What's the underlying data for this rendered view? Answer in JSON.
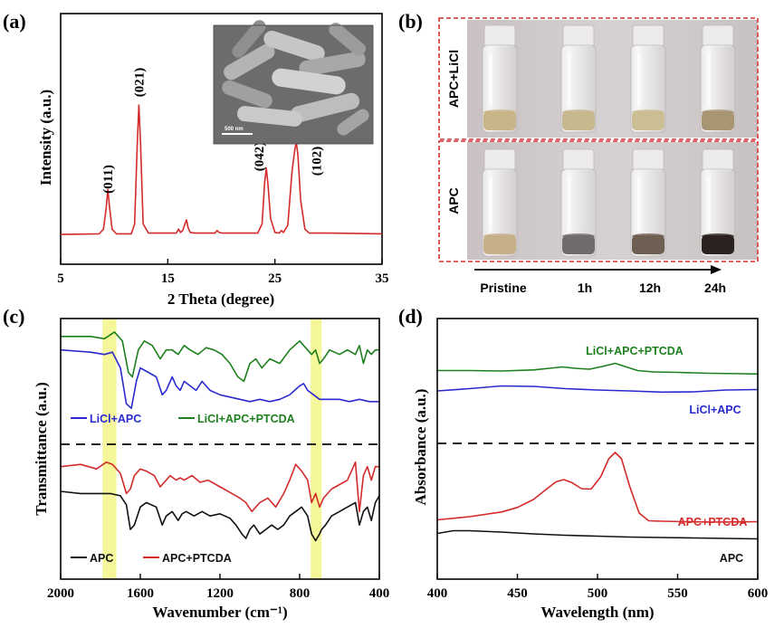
{
  "panels": {
    "a": "(a)",
    "b": "(b)",
    "c": "(c)",
    "d": "(d)"
  },
  "colors": {
    "red": "#d42a2a",
    "blue": "#2a2ad0",
    "green": "#1d7f1d",
    "black": "#111111",
    "highlight": "#f4f48a",
    "dashed_box": "#d83030"
  },
  "photo_panel": {
    "row_labels": [
      "APC+LiCl",
      "APC"
    ],
    "time_labels": [
      "Pristine",
      "1h",
      "12h",
      "24h"
    ],
    "vial_liquid_colors": {
      "apc_licl": [
        "#c8b58a",
        "#c7b88e",
        "#cbbd94",
        "#a89572"
      ],
      "apc": [
        "#c6b08a",
        "#6f6b6e",
        "#6f5e52",
        "#2a2220"
      ]
    }
  },
  "sem_inset": {
    "scale_text": "500 nm"
  },
  "chart_data": [
    {
      "id": "a",
      "type": "line",
      "title": "",
      "xlabel": "2 Theta (degree)",
      "ylabel": "Intensity (a.u.)",
      "xlim": [
        5,
        35
      ],
      "xticks": [
        5,
        15,
        25,
        35
      ],
      "xtick_labels": [
        "5",
        "15",
        "25",
        "35"
      ],
      "ylim": [
        0,
        110
      ],
      "annotations": [
        {
          "text": "(011)",
          "x": 9.4
        },
        {
          "text": "(021)",
          "x": 12.3
        },
        {
          "text": "(042)",
          "x": 24.2
        },
        {
          "text": "(102)",
          "x": 27.0
        }
      ],
      "series": [
        {
          "name": "XRD",
          "color": "#d42a2a",
          "x": [
            5,
            8.6,
            9.0,
            9.25,
            9.4,
            9.55,
            9.8,
            10.2,
            11.6,
            11.9,
            12.15,
            12.3,
            12.45,
            12.7,
            13.2,
            15.8,
            16.0,
            16.2,
            16.4,
            16.6,
            16.75,
            16.9,
            17.1,
            17.5,
            19.4,
            19.6,
            19.8,
            20.1,
            21.5,
            23.4,
            23.8,
            24.05,
            24.2,
            24.35,
            24.6,
            25.0,
            25.4,
            25.6,
            25.8,
            26.2,
            26.6,
            26.85,
            27.0,
            27.15,
            27.4,
            27.8,
            28.2,
            30.0,
            35
          ],
          "y": [
            2,
            2.5,
            6,
            22,
            36,
            24,
            6,
            2.5,
            2.5,
            10,
            70,
            100,
            72,
            10,
            3,
            3,
            6,
            3.5,
            5,
            10,
            13,
            7,
            3.5,
            3,
            3,
            5,
            3.5,
            3,
            3,
            3,
            10,
            42,
            52,
            40,
            14,
            3.5,
            3,
            5,
            3.5,
            9,
            50,
            66,
            72,
            62,
            28,
            6,
            3,
            3,
            2.5
          ]
        }
      ]
    },
    {
      "id": "c",
      "type": "line",
      "title": "",
      "xlabel": "Wavenumber (cm⁻¹)",
      "ylabel": "Transmittance (a.u.)",
      "xlim": [
        2000,
        400
      ],
      "xticks": [
        2000,
        1600,
        1200,
        800,
        400
      ],
      "xtick_labels": [
        "2000",
        "1600",
        "1200",
        "800",
        "400"
      ],
      "ylim": [
        0,
        100
      ],
      "highlight_bands": [
        [
          1790,
          1720
        ],
        [
          745,
          690
        ]
      ],
      "divider_y": 50,
      "legend": [
        {
          "label": "LiCl+APC",
          "color": "#2a2ad0"
        },
        {
          "label": "LiCl+APC+PTCDA",
          "color": "#1d7f1d"
        },
        {
          "label": "APC",
          "color": "#111111"
        },
        {
          "label": "APC+PTCDA",
          "color": "#d42a2a"
        }
      ],
      "series": [
        {
          "name": "LiCl+APC+PTCDA",
          "color": "#1d7f1d",
          "x": [
            2000,
            1850,
            1780,
            1730,
            1690,
            1660,
            1640,
            1610,
            1580,
            1540,
            1500,
            1470,
            1440,
            1410,
            1380,
            1350,
            1310,
            1270,
            1230,
            1190,
            1150,
            1110,
            1080,
            1050,
            1020,
            990,
            950,
            900,
            850,
            800,
            780,
            740,
            720,
            700,
            680,
            650,
            600,
            560,
            520,
            500,
            480,
            460,
            440,
            420,
            400
          ],
          "y": [
            92,
            92,
            91,
            94,
            90,
            76,
            74,
            86,
            90,
            88,
            82,
            86,
            86,
            84,
            88,
            86,
            84,
            87,
            86,
            84,
            80,
            74,
            72,
            80,
            82,
            78,
            82,
            80,
            86,
            90,
            88,
            84,
            86,
            80,
            82,
            86,
            84,
            86,
            84,
            88,
            80,
            86,
            84,
            86,
            86
          ]
        },
        {
          "name": "LiCl+APC",
          "color": "#2a2ad0",
          "x": [
            2000,
            1850,
            1780,
            1740,
            1700,
            1670,
            1645,
            1620,
            1600,
            1560,
            1520,
            1490,
            1470,
            1440,
            1420,
            1400,
            1380,
            1350,
            1320,
            1290,
            1250,
            1200,
            1150,
            1100,
            1050,
            1000,
            950,
            900,
            850,
            800,
            780,
            760,
            730,
            700,
            680,
            650,
            600,
            550,
            500,
            450,
            400
          ],
          "y": [
            86,
            85,
            84,
            85,
            78,
            62,
            60,
            72,
            78,
            76,
            74,
            66,
            68,
            74,
            70,
            68,
            72,
            70,
            68,
            72,
            68,
            66,
            65,
            64,
            63,
            64,
            63,
            64,
            66,
            70,
            71,
            68,
            66,
            64,
            64,
            64,
            64,
            63,
            64,
            63,
            63
          ]
        },
        {
          "name": "APC+PTCDA",
          "color": "#d42a2a",
          "x": [
            2000,
            1900,
            1820,
            1770,
            1740,
            1700,
            1670,
            1650,
            1630,
            1600,
            1570,
            1530,
            1500,
            1470,
            1450,
            1420,
            1400,
            1380,
            1340,
            1300,
            1260,
            1220,
            1180,
            1140,
            1100,
            1070,
            1040,
            1000,
            960,
            920,
            880,
            850,
            820,
            790,
            760,
            740,
            720,
            700,
            680,
            640,
            600,
            560,
            520,
            500,
            480,
            460,
            440,
            420,
            400
          ],
          "y": [
            34,
            35,
            33,
            36,
            35,
            31,
            22,
            24,
            30,
            33,
            32,
            30,
            25,
            28,
            30,
            28,
            29,
            28,
            30,
            27,
            28,
            26,
            24,
            22,
            20,
            18,
            14,
            18,
            20,
            16,
            22,
            28,
            35,
            32,
            28,
            18,
            22,
            16,
            20,
            24,
            26,
            28,
            36,
            14,
            30,
            34,
            28,
            34,
            34
          ]
        },
        {
          "name": "APC",
          "color": "#111111",
          "x": [
            2000,
            1900,
            1800,
            1750,
            1700,
            1670,
            1650,
            1630,
            1600,
            1570,
            1520,
            1490,
            1470,
            1440,
            1410,
            1390,
            1370,
            1330,
            1290,
            1250,
            1200,
            1150,
            1120,
            1090,
            1070,
            1050,
            1030,
            1000,
            970,
            940,
            910,
            880,
            850,
            820,
            790,
            760,
            740,
            720,
            700,
            690,
            670,
            640,
            600,
            560,
            520,
            500,
            480,
            460,
            440,
            420,
            400
          ],
          "y": [
            23,
            22,
            22,
            22,
            21,
            17,
            6,
            8,
            16,
            18,
            16,
            8,
            12,
            14,
            10,
            13,
            14,
            12,
            14,
            12,
            13,
            11,
            8,
            4,
            2,
            6,
            8,
            4,
            6,
            8,
            6,
            8,
            12,
            14,
            16,
            12,
            4,
            1,
            4,
            6,
            8,
            12,
            14,
            16,
            18,
            8,
            14,
            16,
            10,
            18,
            21
          ]
        }
      ]
    },
    {
      "id": "d",
      "type": "line",
      "title": "",
      "xlabel": "Wavelength (nm)",
      "ylabel": "Absorbance (a.u.)",
      "xlim": [
        400,
        600
      ],
      "xticks": [
        400,
        450,
        500,
        550,
        600
      ],
      "xtick_labels": [
        "400",
        "450",
        "500",
        "550",
        "600"
      ],
      "ylim": [
        0,
        100
      ],
      "divider_y": 49,
      "labels": [
        {
          "text": "LiCl+APC+PTCDA",
          "color": "#1d7f1d"
        },
        {
          "text": "LiCl+APC",
          "color": "#2a2ad0"
        },
        {
          "text": "APC+PTCDA",
          "color": "#d42a2a"
        },
        {
          "text": "APC",
          "color": "#111111"
        }
      ],
      "series": [
        {
          "name": "LiCl+APC+PTCDA",
          "color": "#1d7f1d",
          "x": [
            400,
            420,
            440,
            460,
            470,
            478,
            486,
            495,
            503,
            511,
            518,
            525,
            535,
            550,
            570,
            590,
            600
          ],
          "y": [
            77,
            77,
            76.8,
            77.3,
            78,
            78.6,
            78,
            77.6,
            78.8,
            80.2,
            78.6,
            77,
            76.4,
            76.2,
            75.8,
            75.6,
            75.5
          ]
        },
        {
          "name": "LiCl+APC",
          "color": "#2a2ad0",
          "x": [
            400,
            420,
            440,
            460,
            480,
            500,
            520,
            540,
            560,
            580,
            600
          ],
          "y": [
            68,
            69,
            70.2,
            70,
            69,
            68.4,
            68,
            67.5,
            67.6,
            68.4,
            68.6
          ]
        },
        {
          "name": "APC+PTCDA",
          "color": "#d42a2a",
          "x": [
            400,
            420,
            440,
            450,
            460,
            468,
            474,
            479,
            484,
            490,
            496,
            502,
            507,
            511,
            515,
            520,
            526,
            532,
            540,
            555,
            570,
            585,
            600
          ],
          "y": [
            11,
            12.4,
            14.5,
            16.5,
            20,
            24.5,
            27.8,
            28.8,
            27.5,
            24.8,
            24.6,
            30,
            38,
            40.8,
            38,
            26,
            14,
            10.6,
            10.4,
            10.2,
            10,
            10.1,
            10.2
          ]
        },
        {
          "name": "APC",
          "color": "#111111",
          "x": [
            400,
            410,
            420,
            440,
            460,
            480,
            500,
            520,
            540,
            560,
            580,
            600
          ],
          "y": [
            5,
            6.2,
            6.2,
            5.6,
            4.8,
            4.2,
            3.8,
            3.4,
            3.2,
            3,
            2.8,
            2.6
          ]
        }
      ]
    }
  ]
}
